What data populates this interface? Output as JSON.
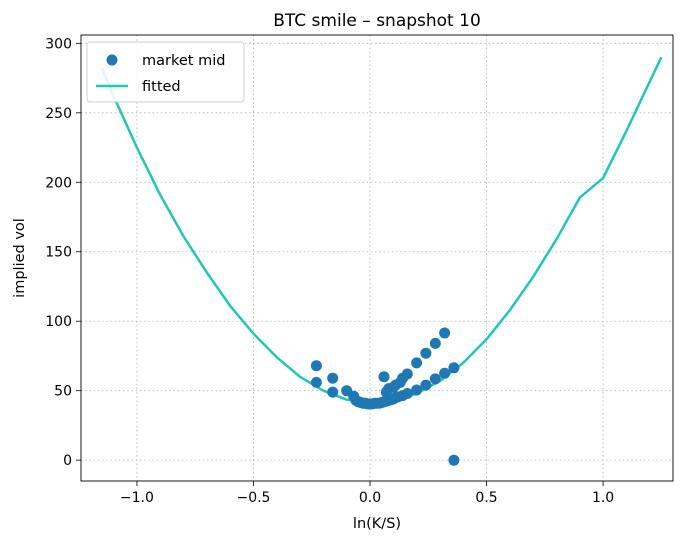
{
  "chart_data": {
    "type": "scatter",
    "title": "BTC smile – snapshot 10",
    "xlabel": "ln(K/S)",
    "ylabel": "implied vol",
    "xlim": [
      -1.24,
      1.3
    ],
    "ylim": [
      -15,
      306
    ],
    "xticks": [
      -1.0,
      -0.5,
      0.0,
      0.5,
      1.0
    ],
    "xtick_labels": [
      "−1.0",
      "−0.5",
      "0.0",
      "0.5",
      "1.0"
    ],
    "yticks": [
      0,
      50,
      100,
      150,
      200,
      250,
      300
    ],
    "ytick_labels": [
      "0",
      "50",
      "100",
      "150",
      "200",
      "250",
      "300"
    ],
    "grid": true,
    "legend_position": "top-left",
    "series": [
      {
        "name": "market mid",
        "kind": "scatter",
        "color": "#1f77b4",
        "points": [
          [
            -0.23,
            68
          ],
          [
            -0.23,
            56
          ],
          [
            -0.16,
            59
          ],
          [
            -0.16,
            49
          ],
          [
            -0.1,
            50
          ],
          [
            -0.07,
            46
          ],
          [
            -0.06,
            43
          ],
          [
            -0.05,
            42
          ],
          [
            -0.04,
            41.5
          ],
          [
            -0.03,
            41
          ],
          [
            -0.02,
            41
          ],
          [
            -0.01,
            40.5
          ],
          [
            0.0,
            40.5
          ],
          [
            0.01,
            40.5
          ],
          [
            0.02,
            41
          ],
          [
            0.03,
            41
          ],
          [
            0.04,
            41
          ],
          [
            0.05,
            41.5
          ],
          [
            0.06,
            42
          ],
          [
            0.07,
            42.5
          ],
          [
            0.08,
            43
          ],
          [
            0.09,
            43.5
          ],
          [
            0.1,
            44
          ],
          [
            0.11,
            45
          ],
          [
            0.12,
            45.5
          ],
          [
            0.14,
            46.5
          ],
          [
            0.16,
            48
          ],
          [
            0.2,
            50.5
          ],
          [
            0.24,
            54
          ],
          [
            0.28,
            58.5
          ],
          [
            0.32,
            62.5
          ],
          [
            0.36,
            66.5
          ],
          [
            0.06,
            60
          ],
          [
            0.07,
            49
          ],
          [
            0.08,
            51.5
          ],
          [
            0.1,
            52.5
          ],
          [
            0.11,
            54
          ],
          [
            0.13,
            56
          ],
          [
            0.14,
            59
          ],
          [
            0.16,
            62
          ],
          [
            0.2,
            70
          ],
          [
            0.24,
            77
          ],
          [
            0.28,
            84
          ],
          [
            0.32,
            91.5
          ],
          [
            0.36,
            0
          ]
        ]
      },
      {
        "name": "fitted",
        "kind": "line",
        "color": "#1fc8b4",
        "points": [
          [
            -1.15,
            282
          ],
          [
            -1.1,
            262
          ],
          [
            -1.0,
            225
          ],
          [
            -0.9,
            191
          ],
          [
            -0.8,
            161
          ],
          [
            -0.7,
            135
          ],
          [
            -0.6,
            111
          ],
          [
            -0.5,
            91
          ],
          [
            -0.4,
            74
          ],
          [
            -0.3,
            60
          ],
          [
            -0.2,
            50
          ],
          [
            -0.1,
            43.5
          ],
          [
            0.0,
            41
          ],
          [
            0.1,
            42.5
          ],
          [
            0.2,
            48
          ],
          [
            0.3,
            57
          ],
          [
            0.4,
            70
          ],
          [
            0.5,
            87
          ],
          [
            0.6,
            108
          ],
          [
            0.7,
            132
          ],
          [
            0.8,
            159
          ],
          [
            0.9,
            189
          ],
          [
            1.0,
            203
          ],
          [
            1.1,
            237
          ],
          [
            1.25,
            290
          ]
        ]
      }
    ]
  }
}
